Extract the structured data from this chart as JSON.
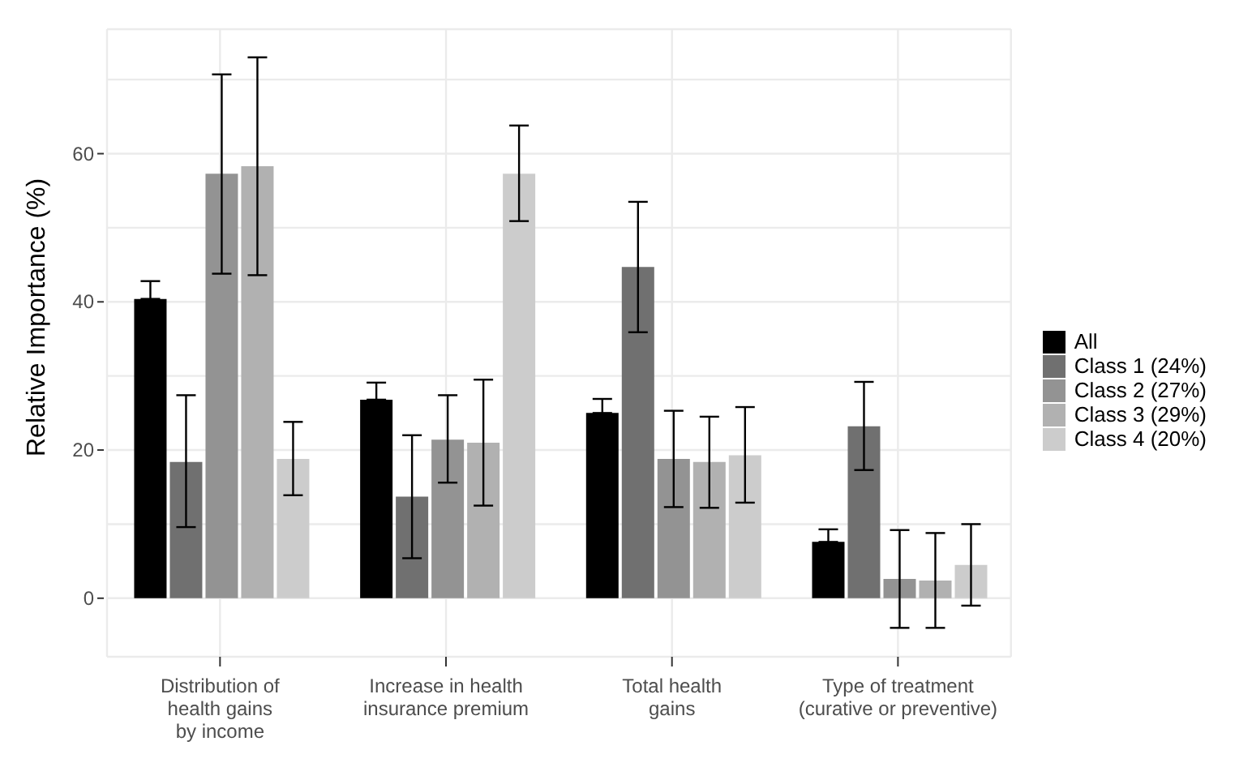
{
  "chart_data": {
    "type": "bar",
    "ylabel": "Relative Importance (%)",
    "categories": [
      "Distribution of\nhealth gains\nby income",
      "Increase in health\ninsurance premium",
      "Total health\ngains",
      "Type of treatment\n(curative or preventive)"
    ],
    "series": [
      {
        "name": "All",
        "color": "#000000",
        "values": [
          40.4,
          26.8,
          25.0,
          7.6
        ],
        "errors": [
          [
            40.4,
            42.8
          ],
          [
            26.8,
            29.1
          ],
          [
            25.0,
            26.9
          ],
          [
            7.6,
            9.3
          ]
        ]
      },
      {
        "name": "Class 1 (24%)",
        "color": "#707070",
        "values": [
          18.4,
          13.7,
          44.7,
          23.2
        ],
        "errors": [
          [
            9.6,
            27.4
          ],
          [
            5.4,
            22.0
          ],
          [
            35.9,
            53.5
          ],
          [
            17.3,
            29.2
          ]
        ]
      },
      {
        "name": "Class 2 (27%)",
        "color": "#939393",
        "values": [
          57.3,
          21.4,
          18.8,
          2.6
        ],
        "errors": [
          [
            43.8,
            70.7
          ],
          [
            15.6,
            27.4
          ],
          [
            12.3,
            25.3
          ],
          [
            -4.0,
            9.2
          ]
        ]
      },
      {
        "name": "Class 3 (29%)",
        "color": "#b1b1b1",
        "values": [
          58.3,
          21.0,
          18.4,
          2.4
        ],
        "errors": [
          [
            43.6,
            73.0
          ],
          [
            12.5,
            29.5
          ],
          [
            12.2,
            24.5
          ],
          [
            -4.0,
            8.8
          ]
        ]
      },
      {
        "name": "Class 4 (20%)",
        "color": "#cccccc",
        "values": [
          18.8,
          57.3,
          19.3,
          4.5
        ],
        "errors": [
          [
            13.9,
            23.8
          ],
          [
            50.9,
            63.8
          ],
          [
            12.9,
            25.8
          ],
          [
            -1.0,
            10.0
          ]
        ]
      }
    ],
    "ylim": [
      -7.9,
      76.8
    ],
    "yticks": [
      0,
      {
        "value": 10,
        "label": null
      },
      20,
      {
        "value": 30,
        "label": null
      },
      40,
      {
        "value": 50,
        "label": null
      },
      60,
      {
        "value": 70,
        "label": null
      }
    ],
    "grid": true,
    "legend": "right"
  }
}
